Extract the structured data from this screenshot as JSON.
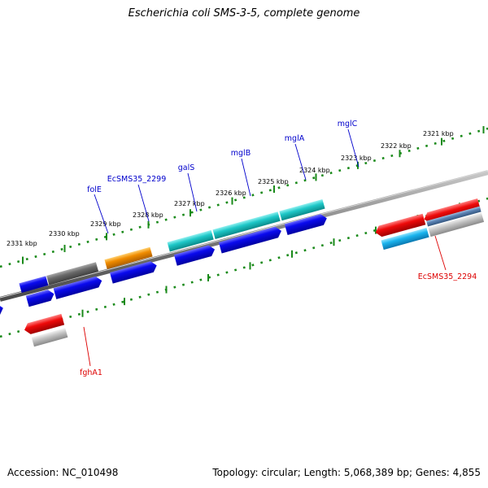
{
  "title": "Escherichia coli SMS-3-5, complete genome",
  "footer": {
    "accession": "Accession: NC_010498",
    "stats": "Topology: circular; Length: 5,068,389 bp; Genes: 4,855"
  },
  "kbp_labels": [
    "2321 kbp",
    "2322 kbp",
    "2323 kbp",
    "2324 kbp",
    "2325 kbp",
    "2326 kbp",
    "2327 kbp",
    "2328 kbp",
    "2329 kbp",
    "2330 kbp",
    "2331 kbp"
  ],
  "gene_labels": {
    "folE": "folE",
    "EcSMS35_2299": "EcSMS35_2299",
    "galS": "galS",
    "mglB": "mglB",
    "mglA": "mglA",
    "mglC": "mglC",
    "EcSMS35_2294": "EcSMS35_2294",
    "fghA1": "fghA1"
  },
  "colors": {
    "label_forward": "#0000cc",
    "label_reverse": "#dd0000",
    "tick": "#1a8a1a",
    "backbone": "#8a8a8a",
    "cds": "#0a0aee",
    "slate": "#46468a",
    "gray": "#6a6a6a",
    "orange": "#f08c00",
    "teal": "#1ec8c8",
    "red": "#ee0a0a",
    "sky": "#1ab4ee",
    "silver": "#c4c4c4",
    "steel": "#5a82b4"
  }
}
